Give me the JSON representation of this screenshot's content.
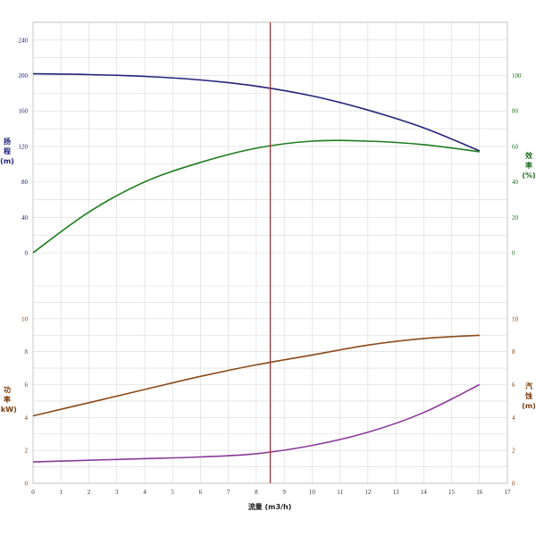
{
  "chart_data": {
    "type": "line",
    "xlabel": "流量 (m3/h)",
    "x_ticks": [
      "0",
      "1",
      "2",
      "3",
      "4",
      "5",
      "6",
      "7",
      "8",
      "9",
      "10",
      "11",
      "12",
      "13",
      "14",
      "15",
      "16",
      "17"
    ],
    "xlim": [
      0,
      17
    ],
    "operating_point_x": 8.5,
    "grid": true,
    "top": {
      "left_axis": {
        "label_chars": [
          "扬",
          "程"
        ],
        "unit": "(m)",
        "ylim": [
          0,
          260
        ],
        "ticks": [
          "0",
          "40",
          "80",
          "120",
          "160",
          "200",
          "240"
        ],
        "color": "#1a1a7a"
      },
      "right_axis": {
        "label_chars": [
          "效",
          "率"
        ],
        "unit": "(%)",
        "ylim": [
          0,
          130
        ],
        "ticks": [
          "0",
          "20",
          "40",
          "60",
          "80",
          "100"
        ],
        "color": "#1a6b1a"
      }
    },
    "bottom": {
      "left_axis": {
        "label_chars": [
          "功",
          "率"
        ],
        "unit": "(kW)",
        "ylim": [
          0,
          12
        ],
        "ticks": [
          "0",
          "2",
          "4",
          "6",
          "8",
          "10"
        ],
        "color": "#7a3a0a"
      },
      "right_axis": {
        "label_chars": [
          "汽",
          "蚀"
        ],
        "unit": "(m)",
        "ylim": [
          0,
          12
        ],
        "ticks": [
          "0",
          "2",
          "4",
          "6",
          "8",
          "10"
        ],
        "color": "#7a3a0a"
      }
    },
    "series": [
      {
        "panel": "top",
        "axis": "left",
        "color": "#23237a",
        "x": [
          0,
          2,
          4,
          6,
          8,
          10,
          12,
          14,
          16
        ],
        "y": [
          202,
          201,
          199,
          195,
          188,
          177,
          161,
          141,
          115
        ]
      },
      {
        "panel": "top",
        "axis": "right",
        "color": "#1e7d1e",
        "x": [
          0,
          2,
          4,
          6,
          8,
          10,
          12,
          14,
          16
        ],
        "y": [
          0,
          23,
          40,
          51,
          59,
          63,
          63,
          61,
          57
        ]
      },
      {
        "panel": "bottom",
        "axis": "left",
        "color": "#8a4a1a",
        "x": [
          0,
          2,
          4,
          6,
          8,
          10,
          12,
          14,
          16
        ],
        "y": [
          4.1,
          4.9,
          5.7,
          6.5,
          7.2,
          7.8,
          8.4,
          8.8,
          9.0
        ]
      },
      {
        "panel": "bottom",
        "axis": "right",
        "color": "#8a3a9a",
        "x": [
          0,
          2,
          4,
          6,
          8,
          10,
          12,
          14,
          16
        ],
        "y": [
          1.3,
          1.4,
          1.5,
          1.6,
          1.8,
          2.3,
          3.1,
          4.3,
          6.0
        ]
      }
    ],
    "colors": {
      "grid": "#d8d8d8",
      "frame": "#999999",
      "operating_line": "#a52a2a"
    }
  }
}
